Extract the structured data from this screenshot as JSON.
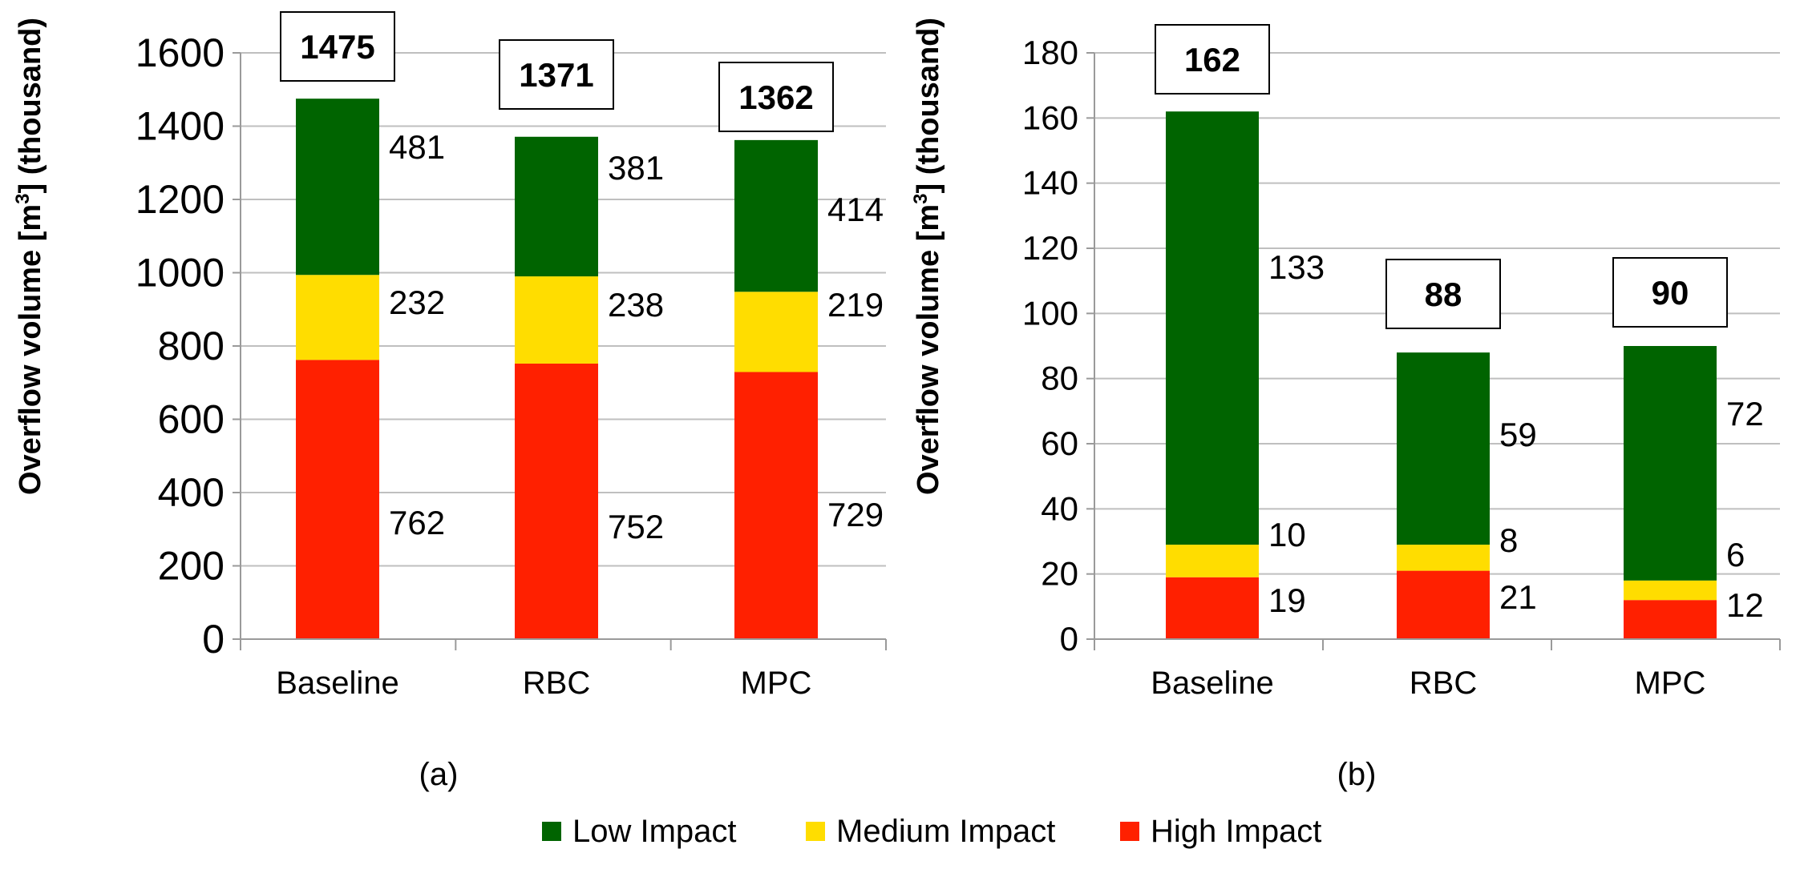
{
  "colors": {
    "low": "#006400",
    "medium": "#FFDD00",
    "high": "#FF2000",
    "grid": "#bfbfbf",
    "axis": "#9a9a9a"
  },
  "legend": [
    {
      "key": "low",
      "label": "Low Impact"
    },
    {
      "key": "medium",
      "label": "Medium Impact"
    },
    {
      "key": "high",
      "label": "High Impact"
    }
  ],
  "chart_data": [
    {
      "id": "a",
      "type": "bar",
      "stacked": true,
      "caption": "(a)",
      "ylabel_main": "Overflow volume  [m",
      "ylabel_sup": "3",
      "ylabel_tail": "] (thousand)",
      "categories": [
        "Baseline",
        "RBC",
        "MPC"
      ],
      "ylim": [
        0,
        1600
      ],
      "yticks": [
        0,
        200,
        400,
        600,
        800,
        1000,
        1200,
        1400,
        1600
      ],
      "series": [
        {
          "key": "high",
          "name": "High Impact",
          "values": [
            762,
            752,
            729
          ]
        },
        {
          "key": "medium",
          "name": "Medium Impact",
          "values": [
            232,
            238,
            219
          ]
        },
        {
          "key": "low",
          "name": "Low Impact",
          "values": [
            481,
            381,
            414
          ]
        }
      ],
      "totals": [
        1475,
        1371,
        1362
      ]
    },
    {
      "id": "b",
      "type": "bar",
      "stacked": true,
      "caption": "(b)",
      "ylabel_main": "Overflow volume [m",
      "ylabel_sup": "3",
      "ylabel_tail": "] (thousand)",
      "categories": [
        "Baseline",
        "RBC",
        "MPC"
      ],
      "ylim": [
        0,
        180
      ],
      "yticks": [
        0,
        20,
        40,
        60,
        80,
        100,
        120,
        140,
        160,
        180
      ],
      "series": [
        {
          "key": "high",
          "name": "High Impact",
          "values": [
            19,
            21,
            12
          ]
        },
        {
          "key": "medium",
          "name": "Medium Impact",
          "values": [
            10,
            8,
            6
          ]
        },
        {
          "key": "low",
          "name": "Low Impact",
          "values": [
            133,
            59,
            72
          ]
        }
      ],
      "totals": [
        162,
        88,
        90
      ]
    }
  ]
}
